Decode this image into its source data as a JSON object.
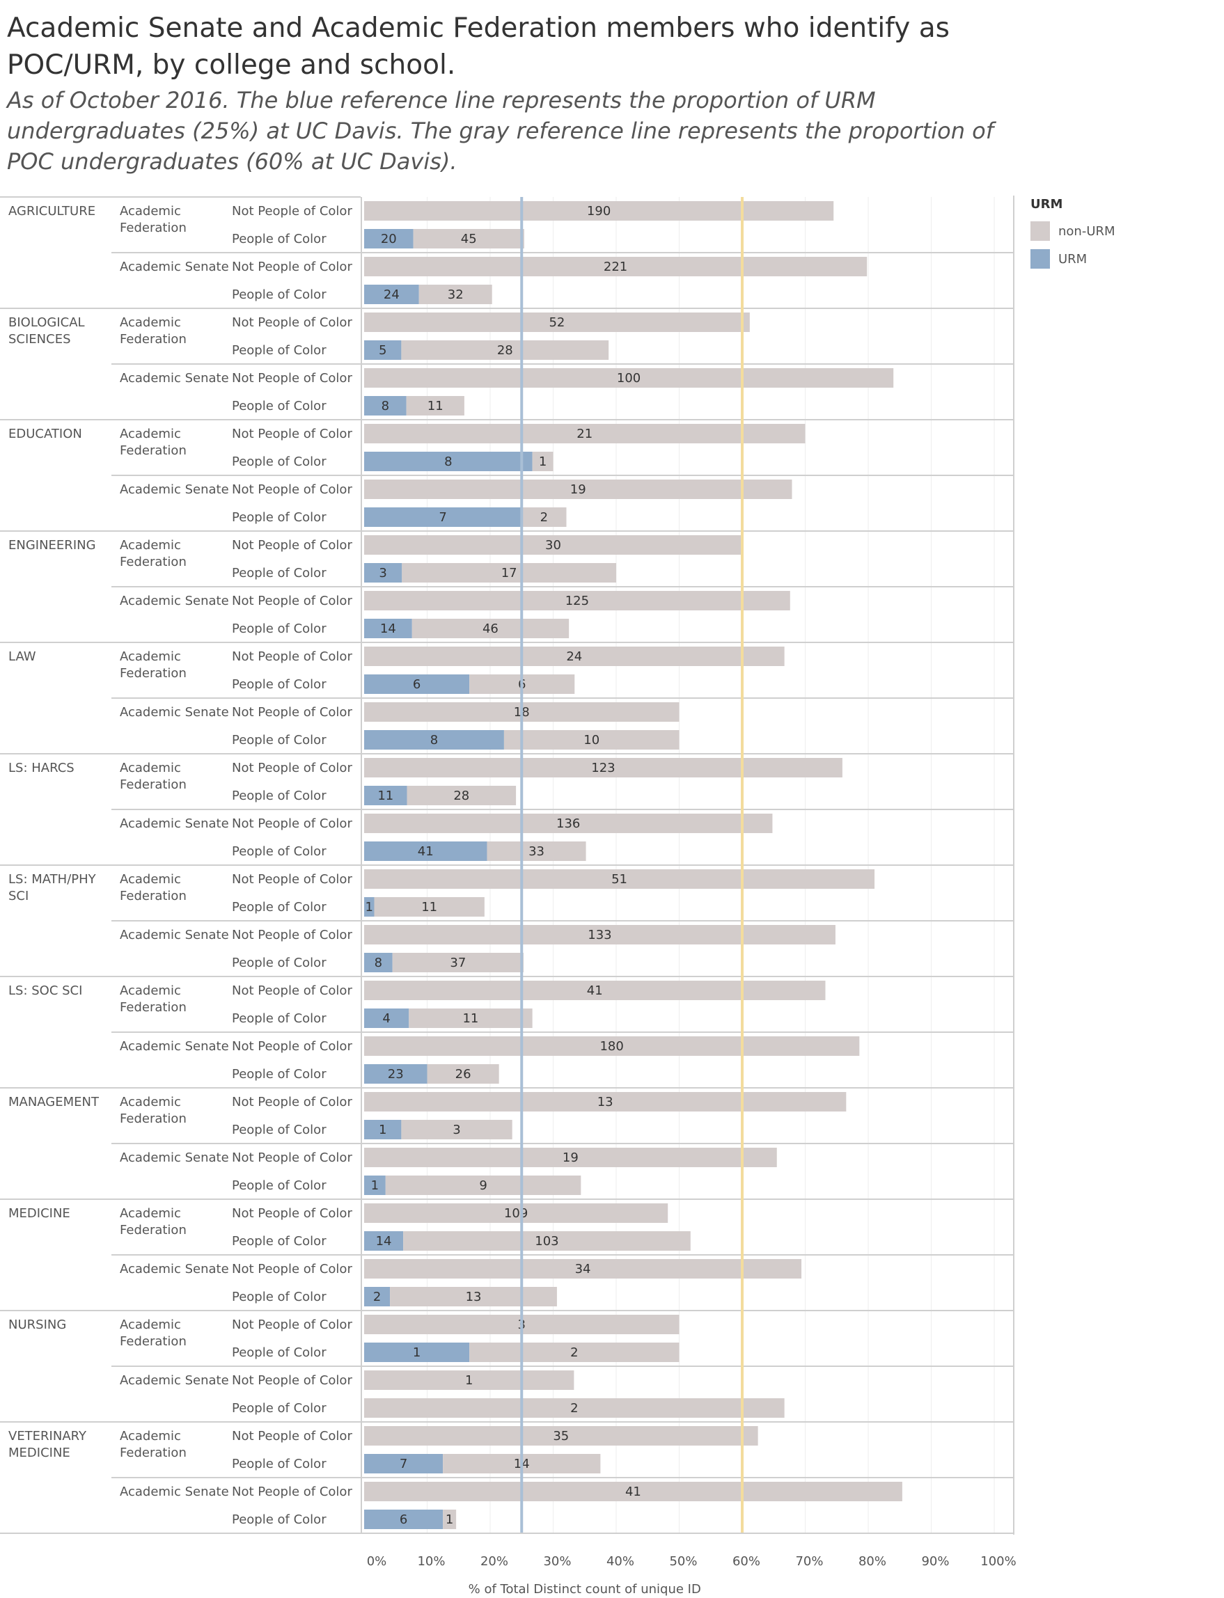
{
  "chart_data": {
    "type": "bar",
    "title": "Academic Senate and Academic Federation members who identify as POC/URM, by college and school.",
    "subtitle": "As of October 2016. The blue reference line represents the proportion of URM undergraduates (25%) at UC Davis. The gray reference line represents the proportion of POC undergraduates (60% at UC Davis).",
    "xlabel": "% of Total Distinct count of unique ID",
    "xlim": [
      0,
      100
    ],
    "x_ticks": [
      "0%",
      "10%",
      "20%",
      "30%",
      "40%",
      "50%",
      "60%",
      "70%",
      "80%",
      "90%",
      "100%"
    ],
    "reference_lines": [
      {
        "value": 25,
        "color": "#a9bfd6"
      },
      {
        "value": 60,
        "color": "#f3dc9d"
      }
    ],
    "legend": {
      "title": "URM",
      "position": "top-right",
      "items": [
        {
          "label": "non-URM",
          "color": "#d3cccb"
        },
        {
          "label": "URM",
          "color": "#8fabc9"
        }
      ]
    },
    "series_colors": {
      "urm": "#8fabc9",
      "non_urm": "#d3cccb"
    },
    "colleges": [
      {
        "name": "AGRICULTURE",
        "groups": [
          {
            "name": "Academic Federation",
            "rows": [
              {
                "label": "Not People of Color",
                "urm_pct": 0,
                "urm_count": null,
                "non_urm_pct": 74.5,
                "non_urm_count": 190
              },
              {
                "label": "People of Color",
                "urm_pct": 7.8,
                "urm_count": 20,
                "non_urm_pct": 17.6,
                "non_urm_count": 45
              }
            ]
          },
          {
            "name": "Academic Senate",
            "rows": [
              {
                "label": "Not People of Color",
                "urm_pct": 0,
                "urm_count": null,
                "non_urm_pct": 79.8,
                "non_urm_count": 221
              },
              {
                "label": "People of Color",
                "urm_pct": 8.7,
                "urm_count": 24,
                "non_urm_pct": 11.6,
                "non_urm_count": 32
              }
            ]
          }
        ]
      },
      {
        "name": "BIOLOGICAL SCIENCES",
        "groups": [
          {
            "name": "Academic Federation",
            "rows": [
              {
                "label": "Not People of Color",
                "urm_pct": 0,
                "urm_count": null,
                "non_urm_pct": 61.2,
                "non_urm_count": 52
              },
              {
                "label": "People of Color",
                "urm_pct": 5.9,
                "urm_count": 5,
                "non_urm_pct": 32.9,
                "non_urm_count": 28
              }
            ]
          },
          {
            "name": "Academic Senate",
            "rows": [
              {
                "label": "Not People of Color",
                "urm_pct": 0,
                "urm_count": null,
                "non_urm_pct": 84.0,
                "non_urm_count": 100
              },
              {
                "label": "People of Color",
                "urm_pct": 6.7,
                "urm_count": 8,
                "non_urm_pct": 9.2,
                "non_urm_count": 11
              }
            ]
          }
        ]
      },
      {
        "name": "EDUCATION",
        "groups": [
          {
            "name": "Academic Federation",
            "rows": [
              {
                "label": "Not People of Color",
                "urm_pct": 0,
                "urm_count": null,
                "non_urm_pct": 70.0,
                "non_urm_count": 21
              },
              {
                "label": "People of Color",
                "urm_pct": 26.7,
                "urm_count": 8,
                "non_urm_pct": 3.3,
                "non_urm_count": 1
              }
            ]
          },
          {
            "name": "Academic Senate",
            "rows": [
              {
                "label": "Not People of Color",
                "urm_pct": 0,
                "urm_count": null,
                "non_urm_pct": 67.9,
                "non_urm_count": 19
              },
              {
                "label": "People of Color",
                "urm_pct": 25.0,
                "urm_count": 7,
                "non_urm_pct": 7.1,
                "non_urm_count": 2
              }
            ]
          }
        ]
      },
      {
        "name": "ENGINEERING",
        "groups": [
          {
            "name": "Academic Federation",
            "rows": [
              {
                "label": "Not People of Color",
                "urm_pct": 0,
                "urm_count": null,
                "non_urm_pct": 60.0,
                "non_urm_count": 30
              },
              {
                "label": "People of Color",
                "urm_pct": 6.0,
                "urm_count": 3,
                "non_urm_pct": 34.0,
                "non_urm_count": 17
              }
            ]
          },
          {
            "name": "Academic Senate",
            "rows": [
              {
                "label": "Not People of Color",
                "urm_pct": 0,
                "urm_count": null,
                "non_urm_pct": 67.6,
                "non_urm_count": 125
              },
              {
                "label": "People of Color",
                "urm_pct": 7.6,
                "urm_count": 14,
                "non_urm_pct": 24.9,
                "non_urm_count": 46
              }
            ]
          }
        ]
      },
      {
        "name": "LAW",
        "groups": [
          {
            "name": "Academic Federation",
            "rows": [
              {
                "label": "Not People of Color",
                "urm_pct": 0,
                "urm_count": null,
                "non_urm_pct": 66.7,
                "non_urm_count": 24
              },
              {
                "label": "People of Color",
                "urm_pct": 16.7,
                "urm_count": 6,
                "non_urm_pct": 16.7,
                "non_urm_count": 6
              }
            ]
          },
          {
            "name": "Academic Senate",
            "rows": [
              {
                "label": "Not People of Color",
                "urm_pct": 0,
                "urm_count": null,
                "non_urm_pct": 50.0,
                "non_urm_count": 18
              },
              {
                "label": "People of Color",
                "urm_pct": 22.2,
                "urm_count": 8,
                "non_urm_pct": 27.8,
                "non_urm_count": 10
              }
            ]
          }
        ]
      },
      {
        "name": "LS: HARCS",
        "groups": [
          {
            "name": "Academic Federation",
            "rows": [
              {
                "label": "Not People of Color",
                "urm_pct": 0,
                "urm_count": null,
                "non_urm_pct": 75.9,
                "non_urm_count": 123
              },
              {
                "label": "People of Color",
                "urm_pct": 6.8,
                "urm_count": 11,
                "non_urm_pct": 17.3,
                "non_urm_count": 28
              }
            ]
          },
          {
            "name": "Academic Senate",
            "rows": [
              {
                "label": "Not People of Color",
                "urm_pct": 0,
                "urm_count": null,
                "non_urm_pct": 64.8,
                "non_urm_count": 136
              },
              {
                "label": "People of Color",
                "urm_pct": 19.5,
                "urm_count": 41,
                "non_urm_pct": 15.7,
                "non_urm_count": 33
              }
            ]
          }
        ]
      },
      {
        "name": "LS: MATH/PHY SCI",
        "groups": [
          {
            "name": "Academic Federation",
            "rows": [
              {
                "label": "Not People of Color",
                "urm_pct": 0,
                "urm_count": null,
                "non_urm_pct": 81.0,
                "non_urm_count": 51
              },
              {
                "label": "People of Color",
                "urm_pct": 1.6,
                "urm_count": 1,
                "non_urm_pct": 17.5,
                "non_urm_count": 11
              }
            ]
          },
          {
            "name": "Academic Senate",
            "rows": [
              {
                "label": "Not People of Color",
                "urm_pct": 0,
                "urm_count": null,
                "non_urm_pct": 74.8,
                "non_urm_count": 133
              },
              {
                "label": "People of Color",
                "urm_pct": 4.5,
                "urm_count": 8,
                "non_urm_pct": 20.8,
                "non_urm_count": 37
              }
            ]
          }
        ]
      },
      {
        "name": "LS: SOC SCI",
        "groups": [
          {
            "name": "Academic Federation",
            "rows": [
              {
                "label": "Not People of Color",
                "urm_pct": 0,
                "urm_count": null,
                "non_urm_pct": 73.2,
                "non_urm_count": 41
              },
              {
                "label": "People of Color",
                "urm_pct": 7.1,
                "urm_count": 4,
                "non_urm_pct": 19.6,
                "non_urm_count": 11
              }
            ]
          },
          {
            "name": "Academic Senate",
            "rows": [
              {
                "label": "Not People of Color",
                "urm_pct": 0,
                "urm_count": null,
                "non_urm_pct": 78.6,
                "non_urm_count": 180
              },
              {
                "label": "People of Color",
                "urm_pct": 10.0,
                "urm_count": 23,
                "non_urm_pct": 11.4,
                "non_urm_count": 26
              }
            ]
          }
        ]
      },
      {
        "name": "MANAGEMENT",
        "groups": [
          {
            "name": "Academic Federation",
            "rows": [
              {
                "label": "Not People of Color",
                "urm_pct": 0,
                "urm_count": null,
                "non_urm_pct": 76.5,
                "non_urm_count": 13
              },
              {
                "label": "People of Color",
                "urm_pct": 5.9,
                "urm_count": 1,
                "non_urm_pct": 17.6,
                "non_urm_count": 3
              }
            ]
          },
          {
            "name": "Academic Senate",
            "rows": [
              {
                "label": "Not People of Color",
                "urm_pct": 0,
                "urm_count": null,
                "non_urm_pct": 65.5,
                "non_urm_count": 19
              },
              {
                "label": "People of Color",
                "urm_pct": 3.4,
                "urm_count": 1,
                "non_urm_pct": 31.0,
                "non_urm_count": 9
              }
            ]
          }
        ]
      },
      {
        "name": "MEDICINE",
        "groups": [
          {
            "name": "Academic Federation",
            "rows": [
              {
                "label": "Not People of Color",
                "urm_pct": 0,
                "urm_count": null,
                "non_urm_pct": 48.2,
                "non_urm_count": 109
              },
              {
                "label": "People of Color",
                "urm_pct": 6.2,
                "urm_count": 14,
                "non_urm_pct": 45.6,
                "non_urm_count": 103
              }
            ]
          },
          {
            "name": "Academic Senate",
            "rows": [
              {
                "label": "Not People of Color",
                "urm_pct": 0,
                "urm_count": null,
                "non_urm_pct": 69.4,
                "non_urm_count": 34
              },
              {
                "label": "People of Color",
                "urm_pct": 4.1,
                "urm_count": 2,
                "non_urm_pct": 26.5,
                "non_urm_count": 13
              }
            ]
          }
        ]
      },
      {
        "name": "NURSING",
        "groups": [
          {
            "name": "Academic Federation",
            "rows": [
              {
                "label": "Not People of Color",
                "urm_pct": 0,
                "urm_count": null,
                "non_urm_pct": 50.0,
                "non_urm_count": 3
              },
              {
                "label": "People of Color",
                "urm_pct": 16.7,
                "urm_count": 1,
                "non_urm_pct": 33.3,
                "non_urm_count": 2
              }
            ]
          },
          {
            "name": "Academic Senate",
            "rows": [
              {
                "label": "Not People of Color",
                "urm_pct": 0,
                "urm_count": null,
                "non_urm_pct": 33.3,
                "non_urm_count": 1
              },
              {
                "label": "People of Color",
                "urm_pct": 0,
                "urm_count": null,
                "non_urm_pct": 66.7,
                "non_urm_count": 2
              }
            ]
          }
        ]
      },
      {
        "name": "VETERINARY MEDICINE",
        "groups": [
          {
            "name": "Academic Federation",
            "rows": [
              {
                "label": "Not People of Color",
                "urm_pct": 0,
                "urm_count": null,
                "non_urm_pct": 62.5,
                "non_urm_count": 35
              },
              {
                "label": "People of Color",
                "urm_pct": 12.5,
                "urm_count": 7,
                "non_urm_pct": 25.0,
                "non_urm_count": 14
              }
            ]
          },
          {
            "name": "Academic Senate",
            "rows": [
              {
                "label": "Not People of Color",
                "urm_pct": 0,
                "urm_count": null,
                "non_urm_pct": 85.4,
                "non_urm_count": 41
              },
              {
                "label": "People of Color",
                "urm_pct": 12.5,
                "urm_count": 6,
                "non_urm_pct": 2.1,
                "non_urm_count": 1
              }
            ]
          }
        ]
      }
    ]
  }
}
